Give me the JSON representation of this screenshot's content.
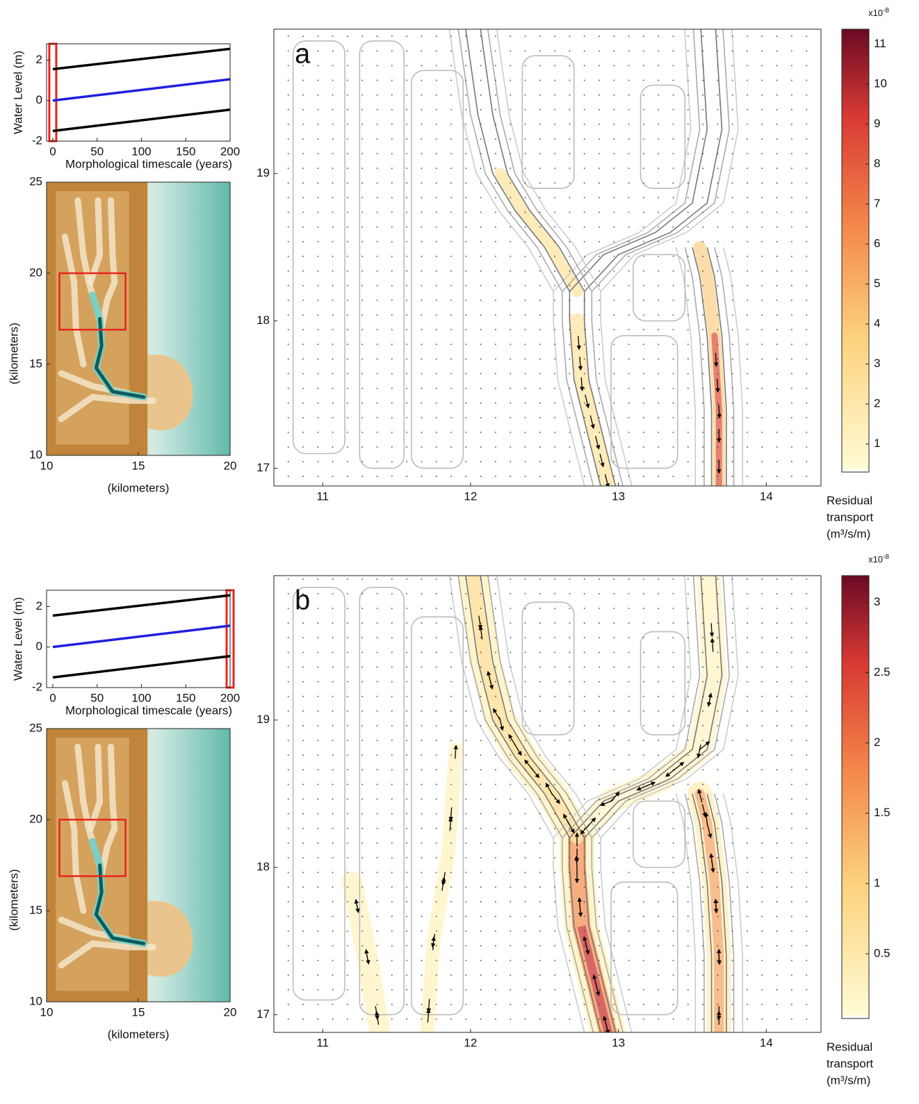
{
  "chart_data": [
    {
      "type": "line",
      "x": [
        0,
        200
      ],
      "xlim": [
        -7,
        200
      ],
      "ylim": [
        -2,
        2.8
      ],
      "xticks": [
        0,
        50,
        100,
        150,
        200
      ],
      "yticks": [
        -2,
        0,
        2
      ],
      "xlabel": "Morphological timescale (years)",
      "ylabel": "Water Level (m)",
      "series": [
        {
          "color": "#000000",
          "values": [
            1.55,
            2.55
          ]
        },
        {
          "color": "#1f1fe0",
          "values": [
            0,
            1.05
          ]
        },
        {
          "color": "#000000",
          "values": [
            -1.5,
            -0.45
          ]
        }
      ],
      "highlight": 0,
      "highlight_color": "#e8231d"
    },
    {
      "type": "map",
      "xlim": [
        10,
        20
      ],
      "ylim": [
        10,
        25
      ],
      "xticks": [
        10,
        15,
        20
      ],
      "yticks": [
        10,
        15,
        20,
        25
      ],
      "xlabel": "(kilometers)",
      "ylabel": "(kilometers)",
      "region_x": [
        10.7,
        14.3
      ],
      "region_y": [
        16.9,
        20
      ],
      "region_color": "#e8231d"
    },
    {
      "type": "contour",
      "label": "a",
      "xlim": [
        10.67,
        14.37
      ],
      "ylim": [
        16.88,
        19.98
      ],
      "xticks": [
        11,
        12,
        13,
        14
      ],
      "yticks": [
        17,
        18,
        19
      ],
      "colorbar": {
        "lim": [
          0.3,
          11.37
        ],
        "ticks": [
          1,
          2,
          3,
          4,
          5,
          6,
          7,
          8,
          9,
          10,
          11
        ],
        "multiplier": "x10",
        "exponent": "-8",
        "label": [
          "Residual",
          "transport",
          "(m³/s/m)"
        ]
      }
    },
    {
      "type": "line",
      "x": [
        0,
        200
      ],
      "xlim": [
        -7,
        200
      ],
      "ylim": [
        -2,
        2.8
      ],
      "xticks": [
        0,
        50,
        100,
        150,
        200
      ],
      "yticks": [
        -2,
        0,
        2
      ],
      "xlabel": "Morphological timescale (years)",
      "ylabel": "Water Level (m)",
      "series": [
        {
          "color": "#000000",
          "values": [
            1.55,
            2.55
          ]
        },
        {
          "color": "#1f1fe0",
          "values": [
            0,
            1.05
          ]
        },
        {
          "color": "#000000",
          "values": [
            -1.5,
            -0.45
          ]
        }
      ],
      "highlight": 200,
      "highlight_color": "#e8231d"
    },
    {
      "type": "map",
      "xlim": [
        10,
        20
      ],
      "ylim": [
        10,
        25
      ],
      "xticks": [
        10,
        15,
        20
      ],
      "yticks": [
        10,
        15,
        20,
        25
      ],
      "xlabel": "(kilometers)",
      "ylabel": "(kilometers)",
      "region_x": [
        10.7,
        14.3
      ],
      "region_y": [
        16.9,
        20
      ],
      "region_color": "#e8231d"
    },
    {
      "type": "contour",
      "label": "b",
      "xlim": [
        10.67,
        14.37
      ],
      "ylim": [
        16.88,
        19.98
      ],
      "xticks": [
        11,
        12,
        13,
        14
      ],
      "yticks": [
        17,
        18,
        19
      ],
      "colorbar": {
        "lim": [
          0.04,
          3.19
        ],
        "ticks": [
          0.5,
          1,
          1.5,
          2,
          2.5,
          3
        ],
        "multiplier": "x10",
        "exponent": "-8",
        "label": [
          "Residual",
          "transport",
          "(m³/s/m)"
        ]
      }
    }
  ]
}
